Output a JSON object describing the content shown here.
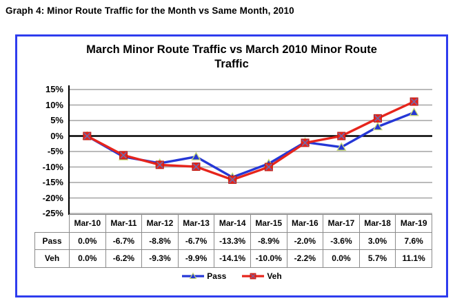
{
  "page": {
    "heading": "Graph 4: Minor Route Traffic for the Month vs Same Month, 2010"
  },
  "chart": {
    "title_line1": "March Minor Route Traffic vs March 2010 Minor Route",
    "title_line2": "Traffic",
    "panel_border_color": "#2e3cee"
  },
  "chart_data": {
    "type": "line",
    "title": "March Minor Route Traffic vs March 2010 Minor Route Traffic",
    "categories": [
      "Mar-10",
      "Mar-11",
      "Mar-12",
      "Mar-13",
      "Mar-14",
      "Mar-15",
      "Mar-16",
      "Mar-17",
      "Mar-18",
      "Mar-19"
    ],
    "series": [
      {
        "name": "Pass",
        "color": "#2537d6",
        "marker": "triangle",
        "marker_stroke": "#c9dc74",
        "values": [
          0.0,
          -6.7,
          -8.8,
          -6.7,
          -13.3,
          -8.9,
          -2.0,
          -3.6,
          3.0,
          7.6
        ]
      },
      {
        "name": "Veh",
        "color": "#e6251c",
        "marker": "square-x",
        "marker_stroke": "#6f6aaa",
        "values": [
          0.0,
          -6.2,
          -9.3,
          -9.9,
          -14.1,
          -10.0,
          -2.2,
          0.0,
          5.7,
          11.1
        ]
      }
    ],
    "ylim": [
      -25,
      15
    ],
    "ytick_step": 5,
    "ytick_labels": [
      "15%",
      "10%",
      "5%",
      "0%",
      "-5%",
      "-10%",
      "-15%",
      "-20%",
      "-25%"
    ],
    "grid": true,
    "gridline_color": "#a4a4a4",
    "zero_line": true,
    "zero_line_color": "#000000",
    "legend_position": "bottom",
    "xlabel": "",
    "ylabel": ""
  },
  "table": {
    "row_labels": [
      "Pass",
      "Veh"
    ],
    "rows": [
      [
        "0.0%",
        "-6.7%",
        "-8.8%",
        "-6.7%",
        "-13.3%",
        "-8.9%",
        "-2.0%",
        "-3.6%",
        "3.0%",
        "7.6%"
      ],
      [
        "0.0%",
        "-6.2%",
        "-9.3%",
        "-9.9%",
        "-14.1%",
        "-10.0%",
        "-2.2%",
        "0.0%",
        "5.7%",
        "11.1%"
      ]
    ]
  },
  "legend": {
    "items": [
      {
        "label": "Pass",
        "series_index": 0
      },
      {
        "label": "Veh",
        "series_index": 1
      }
    ]
  }
}
